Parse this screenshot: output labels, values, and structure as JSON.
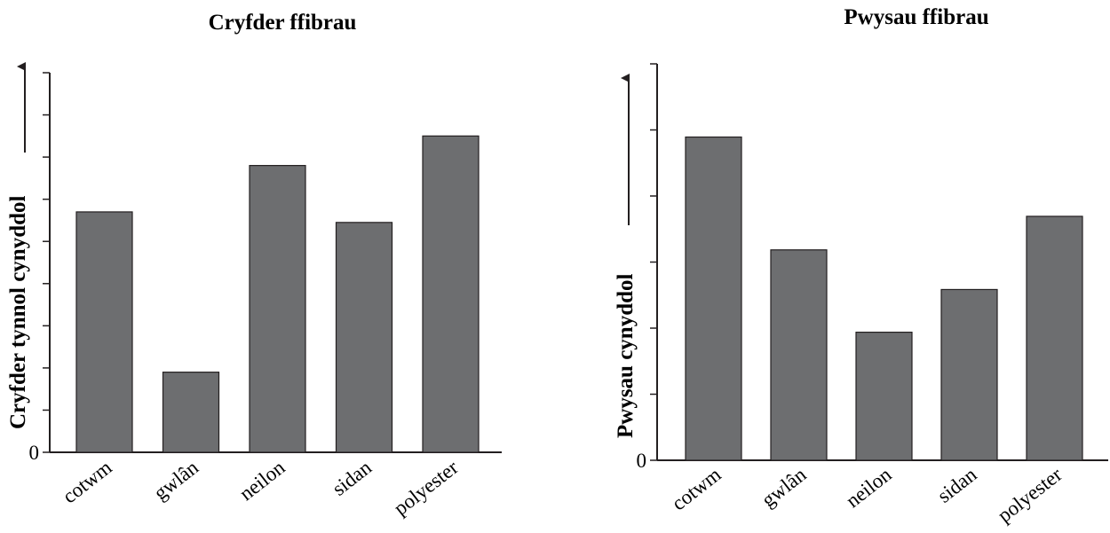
{
  "chart_data": [
    {
      "type": "bar",
      "title": "Cryfder ffibrau",
      "ylabel": "Cryfder tynnol cynyddol",
      "xlabel": "",
      "categories": [
        "cotwm",
        "gwlân",
        "neilon",
        "sidan",
        "polyester"
      ],
      "values": [
        5.7,
        1.9,
        6.8,
        5.45,
        7.5
      ],
      "ylim": [
        0,
        9
      ],
      "y_tick_labels": [
        "0"
      ],
      "y_ticks": 9,
      "bar_color": "#6d6e70",
      "grid": false,
      "legend": "none"
    },
    {
      "type": "bar",
      "title": "Pwysau ffibrau",
      "ylabel": "Pwysau cynyddol",
      "xlabel": "",
      "categories": [
        "cotwm",
        "gwlân",
        "neilon",
        "sidan",
        "polyester"
      ],
      "values": [
        5.3,
        3.45,
        2.1,
        2.8,
        4.0
      ],
      "ylim": [
        0,
        6.5
      ],
      "y_tick_labels": [
        "0"
      ],
      "y_ticks": 6,
      "bar_color": "#6d6e70",
      "grid": false,
      "legend": "none"
    }
  ]
}
